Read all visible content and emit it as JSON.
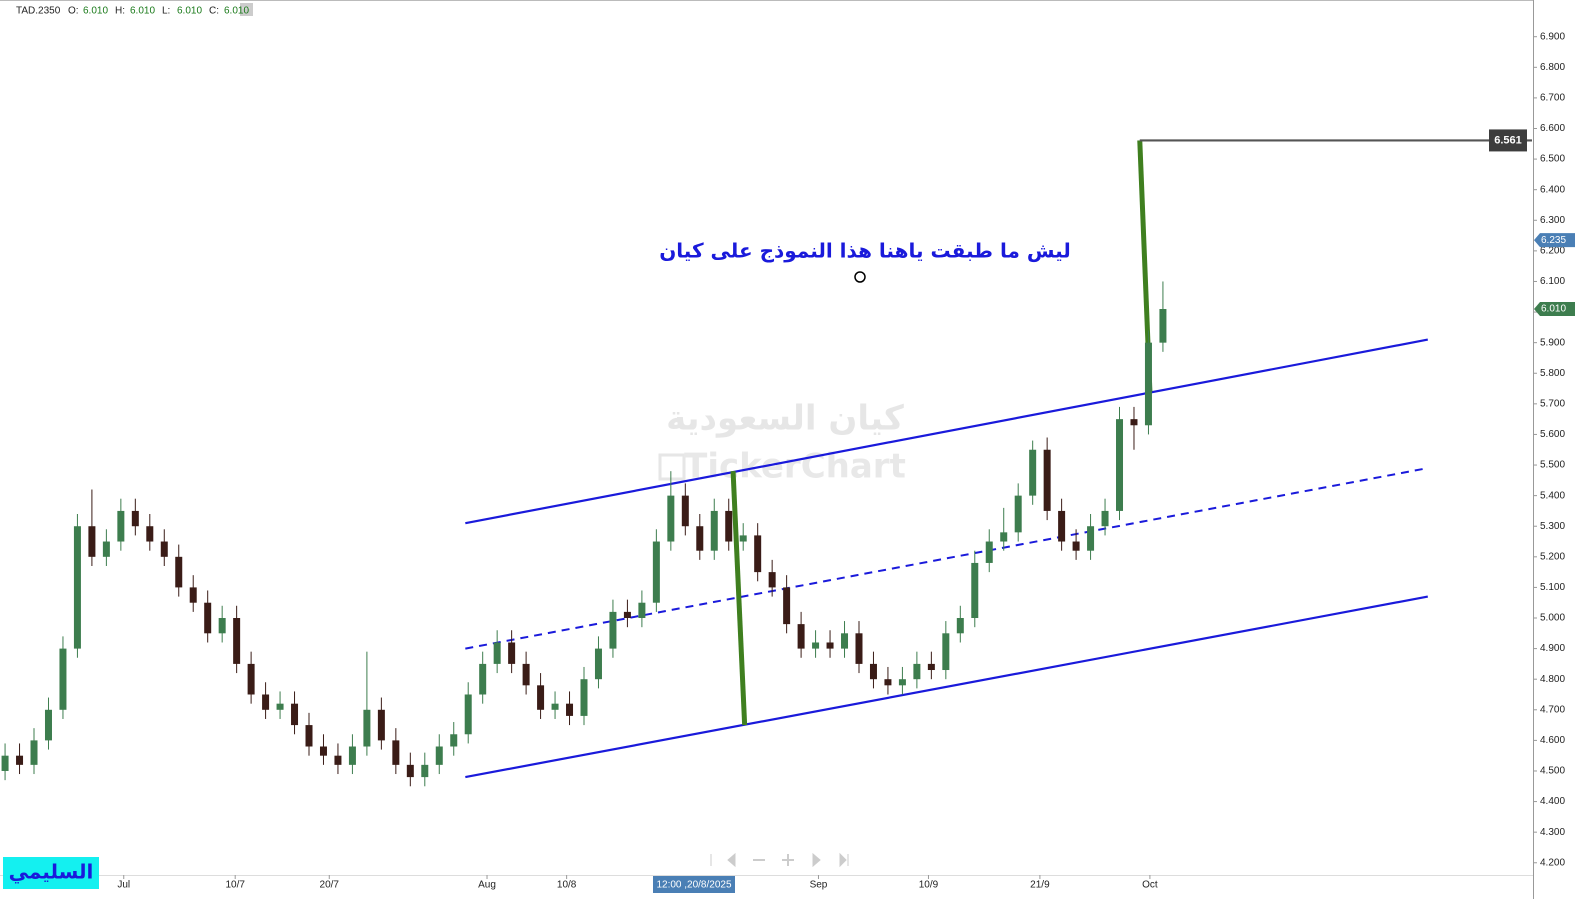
{
  "chart_data": {
    "type": "candlestick",
    "header": {
      "symbol": "TAD.2350",
      "fields": [
        {
          "label": "O:",
          "value": "6.010"
        },
        {
          "label": "H:",
          "value": "6.010"
        },
        {
          "label": "L:",
          "value": "6.010"
        },
        {
          "label": "C:",
          "value": "6.010"
        }
      ]
    },
    "up_color": "#3d7d4e",
    "down_color": "#3a1c17",
    "open": [
      4.5,
      4.55,
      4.52,
      4.6,
      4.7,
      4.9,
      5.3,
      5.2,
      5.25,
      5.35,
      5.3,
      5.25,
      5.2,
      5.1,
      5.05,
      4.95,
      5.0,
      4.85,
      4.75,
      4.7,
      4.72,
      4.65,
      4.58,
      4.55,
      4.52,
      4.58,
      4.7,
      4.6,
      4.52,
      4.48,
      4.52,
      4.58,
      4.62,
      4.75,
      4.85,
      4.92,
      4.85,
      4.78,
      4.7,
      4.72,
      4.68,
      4.8,
      4.9,
      5.02,
      5.0,
      5.05,
      5.25,
      5.4,
      5.3,
      5.22,
      5.35,
      5.25,
      5.27,
      5.15,
      5.1,
      4.98,
      4.9,
      4.92,
      4.9,
      4.95,
      4.85,
      4.8,
      4.78,
      4.8,
      4.85,
      4.83,
      4.95,
      5.0,
      5.18,
      5.25,
      5.28,
      5.4,
      5.55,
      5.35,
      5.25,
      5.22,
      5.3,
      5.35,
      5.65,
      5.63,
      5.9
    ],
    "high": [
      4.59,
      4.59,
      4.64,
      4.74,
      4.94,
      5.34,
      5.42,
      5.29,
      5.39,
      5.39,
      5.34,
      5.29,
      5.24,
      5.14,
      5.09,
      5.04,
      5.04,
      4.89,
      4.79,
      4.76,
      4.76,
      4.69,
      4.62,
      4.59,
      4.62,
      4.89,
      4.74,
      4.64,
      4.56,
      4.56,
      4.62,
      4.66,
      4.79,
      4.89,
      4.96,
      4.96,
      4.89,
      4.82,
      4.76,
      4.76,
      4.84,
      4.94,
      5.06,
      5.06,
      5.09,
      5.29,
      5.48,
      5.44,
      5.34,
      5.39,
      5.39,
      5.31,
      5.31,
      5.19,
      5.14,
      5.02,
      4.96,
      4.96,
      4.99,
      4.99,
      4.89,
      4.84,
      4.84,
      4.89,
      4.89,
      4.99,
      5.04,
      5.22,
      5.29,
      5.36,
      5.44,
      5.58,
      5.59,
      5.39,
      5.29,
      5.34,
      5.39,
      5.69,
      5.69,
      5.94,
      6.1
    ],
    "low": [
      4.47,
      4.49,
      4.49,
      4.57,
      4.67,
      4.87,
      5.17,
      5.17,
      5.22,
      5.27,
      5.22,
      5.17,
      5.07,
      5.02,
      4.92,
      4.92,
      4.82,
      4.72,
      4.67,
      4.67,
      4.62,
      4.55,
      4.52,
      4.49,
      4.49,
      4.55,
      4.57,
      4.49,
      4.45,
      4.45,
      4.49,
      4.55,
      4.59,
      4.72,
      4.82,
      4.82,
      4.75,
      4.67,
      4.67,
      4.65,
      4.65,
      4.77,
      4.87,
      4.97,
      4.97,
      5.02,
      5.22,
      5.27,
      5.19,
      5.19,
      5.22,
      5.22,
      5.12,
      5.07,
      4.95,
      4.87,
      4.87,
      4.87,
      4.87,
      4.82,
      4.77,
      4.75,
      4.75,
      4.77,
      4.8,
      4.8,
      4.92,
      4.97,
      5.15,
      5.22,
      5.25,
      5.37,
      5.32,
      5.22,
      5.19,
      5.19,
      5.27,
      5.32,
      5.55,
      5.6,
      5.87
    ],
    "close": [
      4.55,
      4.52,
      4.6,
      4.7,
      4.9,
      5.3,
      5.2,
      5.25,
      5.35,
      5.3,
      5.25,
      5.2,
      5.1,
      5.05,
      4.95,
      5.0,
      4.85,
      4.75,
      4.7,
      4.72,
      4.65,
      4.58,
      4.55,
      4.52,
      4.58,
      4.7,
      4.6,
      4.52,
      4.48,
      4.52,
      4.58,
      4.62,
      4.75,
      4.85,
      4.92,
      4.85,
      4.78,
      4.7,
      4.72,
      4.68,
      4.8,
      4.9,
      5.02,
      5.0,
      5.05,
      5.25,
      5.4,
      5.3,
      5.22,
      5.35,
      5.25,
      5.27,
      5.15,
      5.1,
      4.98,
      4.9,
      4.92,
      4.9,
      4.95,
      4.85,
      4.8,
      4.78,
      4.8,
      4.85,
      4.83,
      4.95,
      5.0,
      5.18,
      5.25,
      5.28,
      5.4,
      5.55,
      5.35,
      5.25,
      5.22,
      5.3,
      5.35,
      5.65,
      5.63,
      5.9,
      6.01
    ],
    "xlim": [
      -0.35,
      105.5
    ],
    "ylim": [
      4.16,
      7.02
    ],
    "xticks": [
      {
        "value": 8.2,
        "label": "Jul"
      },
      {
        "value": 15.9,
        "label": "10/7"
      },
      {
        "value": 22.4,
        "label": "20/7"
      },
      {
        "value": 33.3,
        "label": "Aug"
      },
      {
        "value": 38.8,
        "label": "10/8"
      },
      {
        "value": 56.2,
        "label": "Sep"
      },
      {
        "value": 63.8,
        "label": "10/9"
      },
      {
        "value": 71.5,
        "label": "21/9"
      },
      {
        "value": 79.1,
        "label": "Oct"
      }
    ],
    "x_crosshair": {
      "value": 47.6,
      "label": "12:00 ,20/8/2025"
    },
    "yticks": [
      {
        "value": 4.2,
        "label": "4.200"
      },
      {
        "value": 4.3,
        "label": "4.300"
      },
      {
        "value": 4.4,
        "label": "4.400"
      },
      {
        "value": 4.5,
        "label": "4.500"
      },
      {
        "value": 4.6,
        "label": "4.600"
      },
      {
        "value": 4.7,
        "label": "4.700"
      },
      {
        "value": 4.8,
        "label": "4.800"
      },
      {
        "value": 4.9,
        "label": "4.900"
      },
      {
        "value": 5.0,
        "label": "5.000"
      },
      {
        "value": 5.1,
        "label": "5.100"
      },
      {
        "value": 5.2,
        "label": "5.200"
      },
      {
        "value": 5.3,
        "label": "5.300"
      },
      {
        "value": 5.4,
        "label": "5.400"
      },
      {
        "value": 5.5,
        "label": "5.500"
      },
      {
        "value": 5.6,
        "label": "5.600"
      },
      {
        "value": 5.7,
        "label": "5.700"
      },
      {
        "value": 5.8,
        "label": "5.800"
      },
      {
        "value": 5.9,
        "label": "5.900"
      },
      {
        "value": 6.0,
        "label": "6.000"
      },
      {
        "value": 6.1,
        "label": "6.100"
      },
      {
        "value": 6.2,
        "label": "6.200"
      },
      {
        "value": 6.3,
        "label": "6.300"
      },
      {
        "value": 6.4,
        "label": "6.400"
      },
      {
        "value": 6.5,
        "label": "6.500"
      },
      {
        "value": 6.6,
        "label": "6.600"
      },
      {
        "value": 6.7,
        "label": "6.700"
      },
      {
        "value": 6.8,
        "label": "6.800"
      },
      {
        "value": 6.9,
        "label": "6.900"
      }
    ],
    "price_tags": [
      {
        "value": 6.561,
        "label": "6.561",
        "color": "#3d3d3d"
      },
      {
        "value": 6.235,
        "label": "6.235",
        "color": "#4a7fb5"
      },
      {
        "value": 6.01,
        "label": "6.010",
        "color": "#3d7d4e"
      }
    ],
    "drawings": [
      {
        "color": "#1a1adb",
        "dashed": false,
        "x": [
          31.8,
          98.3
        ],
        "y": [
          5.31,
          5.91
        ]
      },
      {
        "color": "#1a1adb",
        "dashed": true,
        "x": [
          31.8,
          98.3
        ],
        "y": [
          4.9,
          5.49
        ]
      },
      {
        "color": "#1a1adb",
        "dashed": false,
        "x": [
          31.8,
          98.3
        ],
        "y": [
          4.48,
          5.07
        ]
      },
      {
        "color": "#3f7f1f",
        "dashed": false,
        "x": [
          50.3,
          51.1
        ],
        "y": [
          5.48,
          4.65
        ]
      },
      {
        "color": "#3f7f1f",
        "dashed": false,
        "x": [
          78.4,
          79.1
        ],
        "y": [
          6.561,
          5.74
        ]
      },
      {
        "color": "#555555",
        "dashed": false,
        "x": [
          78.4,
          105.5
        ],
        "y": [
          6.561,
          6.561
        ]
      }
    ],
    "annotation": "ليش ما طبقت ياهنا هذا النموذج على كيان",
    "watermark": [
      "كيان السعودية",
      "TickerChart"
    ],
    "author_badge": "السليمي"
  }
}
